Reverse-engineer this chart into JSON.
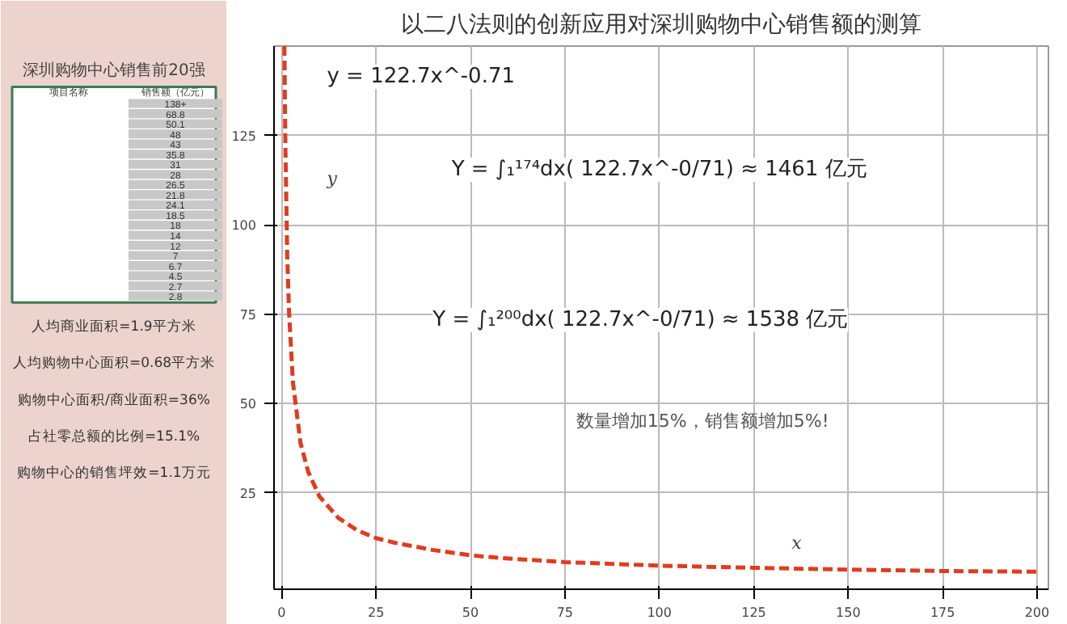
{
  "chart_data": [
    {
      "type": "other",
      "title": "深圳购物中心销售前20强",
      "categories": [
        null,
        null,
        null,
        null,
        null,
        null,
        null,
        null,
        null,
        null,
        null,
        null,
        null,
        null,
        null,
        null,
        null,
        null,
        null,
        null
      ],
      "value_labels": [
        "138+",
        "68.8",
        "50.1",
        "48",
        "43",
        "35.8",
        "31",
        "28",
        "26.5",
        "21.8",
        "24.1",
        "18.5",
        "18",
        "14",
        "12",
        "7",
        "6.7",
        "4.5",
        "2.7",
        "2.8"
      ],
      "data_labels": true,
      "annotations": [
        "项目名称",
        "销售额（亿元）",
        "人均商业面积=1.9平方米",
        "人均购物中心面积=0.68平方米",
        "购物中心面积/商业面积=36%",
        "占社零总额的比例=15.1%",
        "购物中心的销售坪效=1.1万元"
      ]
    },
    {
      "type": "line",
      "title": "以二八法则的创新应用对深圳购物中心销售额的测算",
      "xlabel": "x",
      "ylabel": "y",
      "series": [
        {
          "color": "#e03c1e",
          "x": [
            0.75,
            0.85,
            1,
            1.5,
            2,
            3,
            5,
            7,
            10,
            15,
            20,
            25,
            30,
            40,
            50,
            60,
            75,
            100,
            125,
            150,
            175,
            200
          ],
          "values": [
            150,
            137,
            122.7,
            91,
            75,
            56,
            39,
            31,
            24,
            18,
            14.5,
            12.3,
            11,
            9,
            7.5,
            6.6,
            5.6,
            4.6,
            4,
            3.5,
            3.1,
            2.9
          ]
        }
      ],
      "line_style": "dashed",
      "grid": true,
      "xlim": [
        -2,
        203
      ],
      "ylim": [
        -2,
        150
      ],
      "xticks": [
        0,
        25,
        50,
        75,
        100,
        125,
        150,
        175,
        200
      ],
      "yticks": [
        25,
        50,
        75,
        100,
        125
      ],
      "annotations": [
        "y = 122.7x^-0.71",
        "Y = ∫₁¹⁷⁴dx( 122.7x^-0/71) ≈ 1461 亿元",
        "Y = ∫₁²⁰⁰dx( 122.7x^-0/71) ≈ 1538 亿元",
        "数量增加15%，销售额增加5%!"
      ]
    }
  ]
}
